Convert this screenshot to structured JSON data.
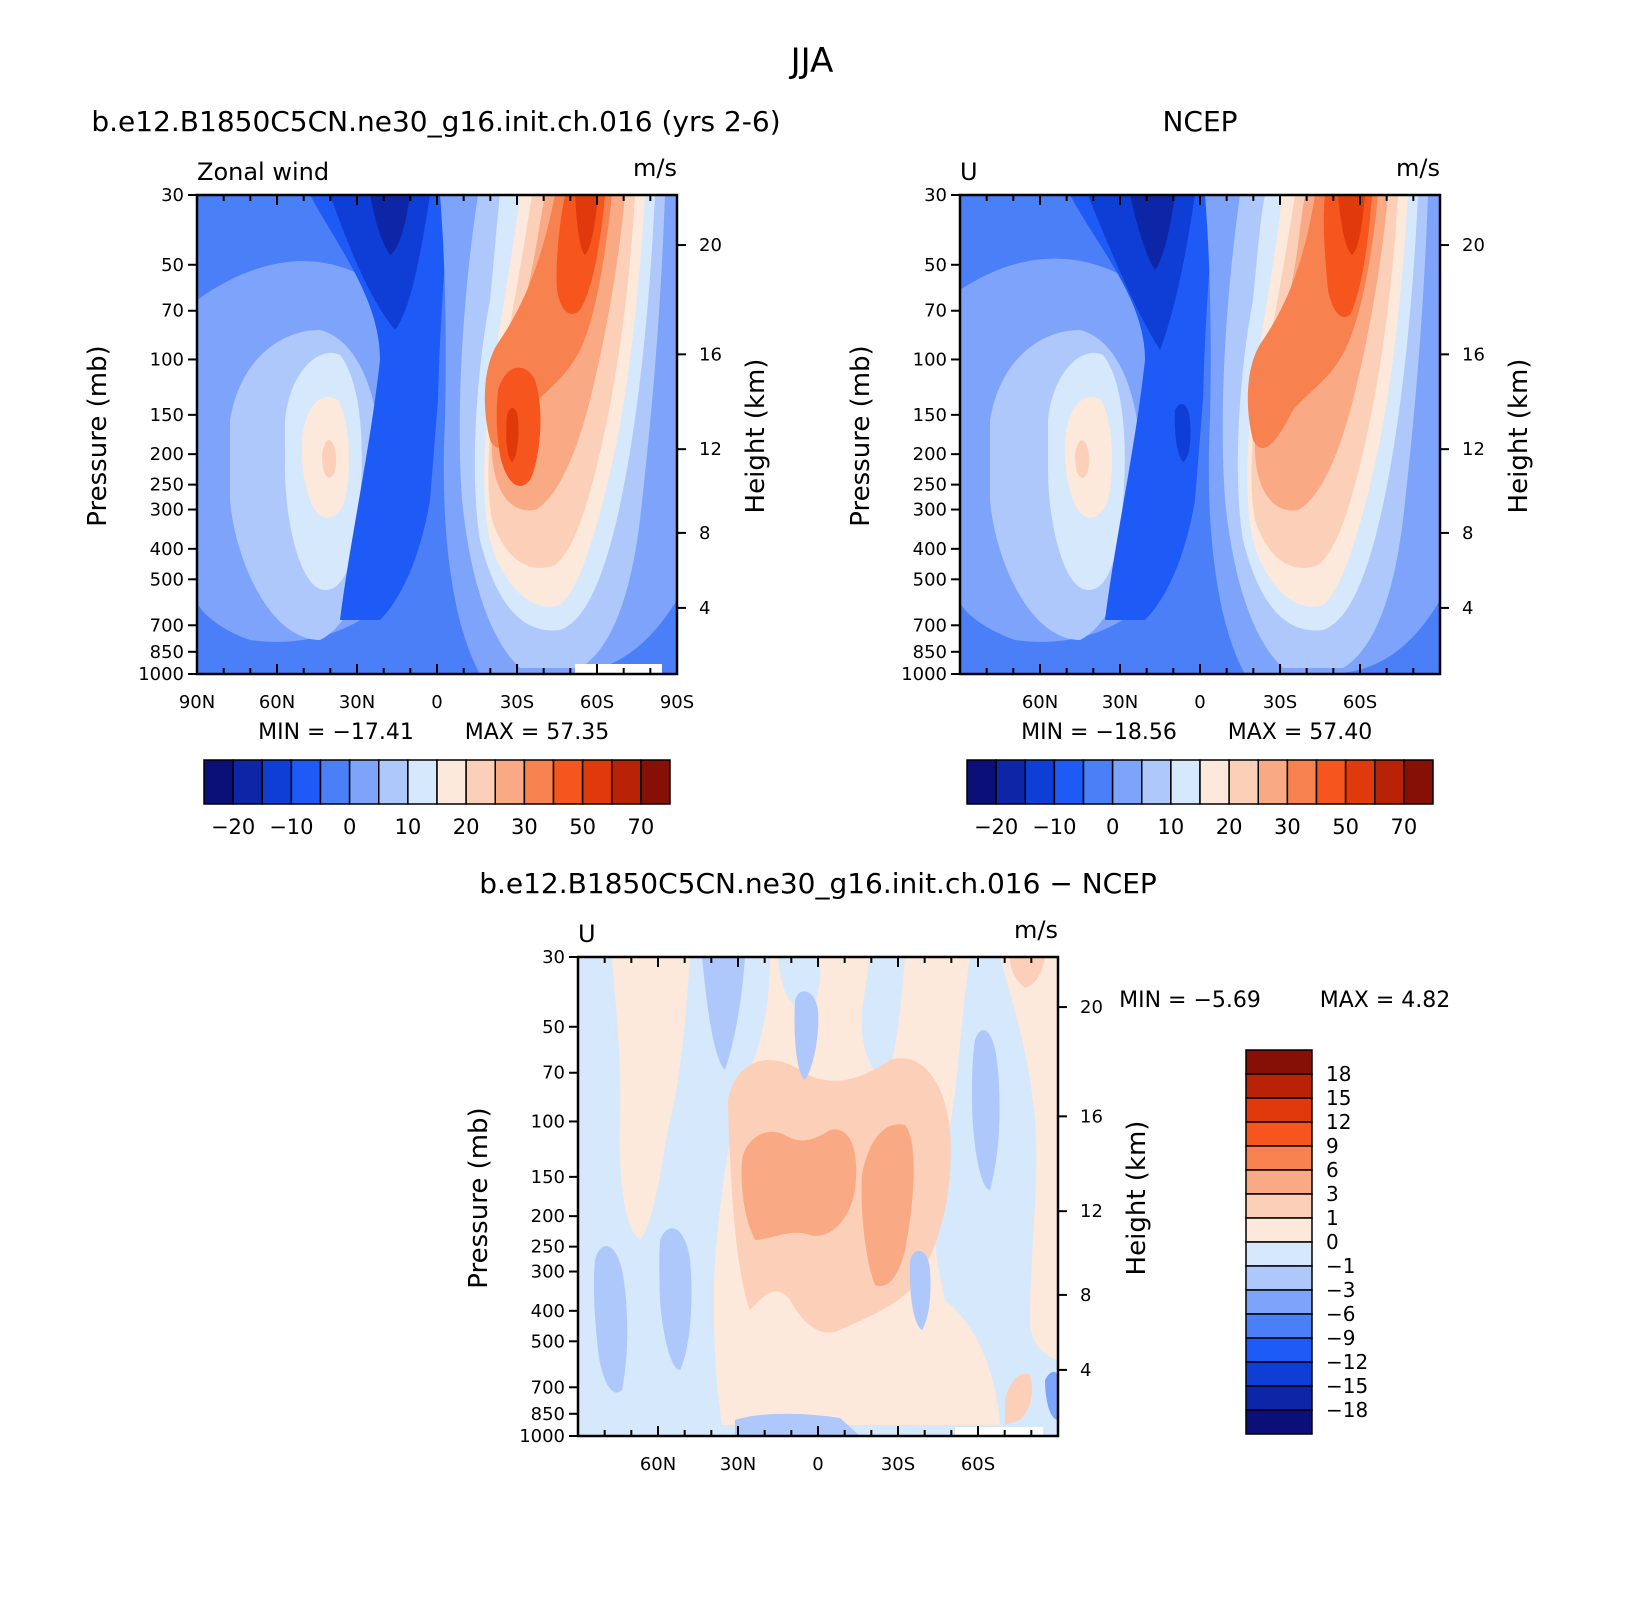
{
  "figure": {
    "title": "JJA"
  },
  "palette": {
    "full": [
      "#0a1078",
      "#0d26a8",
      "#0f3ed6",
      "#1e5af5",
      "#4a7ff7",
      "#7da4fa",
      "#aec8fb",
      "#d6e8fc",
      "#fde9dc",
      "#fcd0b8",
      "#f9aa85",
      "#f7824f",
      "#f6561e",
      "#e03a0c",
      "#b82308",
      "#861006"
    ],
    "model_panel_levels": [
      "#4a7ff7",
      "#7da4fa",
      "#aec8fb",
      "#d6e8fc",
      "#fde9dc",
      "#fcd0b8",
      "#f9aa85",
      "#f7824f",
      "#f6561e",
      "#e03a0c",
      "#1e5af5",
      "#0f3ed6",
      "#0d26a8"
    ],
    "diff_panel_levels": [
      "#d6e8fc",
      "#aec8fb",
      "#7da4fa",
      "#fde9dc",
      "#fcd0b8",
      "#f9aa85"
    ]
  },
  "chart_data": [
    {
      "type": "contour",
      "panel_title": "b.e12.B1850C5CN.ne30_g16.init.ch.016 (yrs 2-6)",
      "left_label": "Zonal wind",
      "right_label": "m/s",
      "ylabel": "Pressure (mb)",
      "ylabel_right": "Height (km)",
      "x_ticks": [
        "90N",
        "60N",
        "30N",
        "0",
        "30S",
        "60S",
        "90S"
      ],
      "x_range": [
        90,
        -90
      ],
      "y_ticks": [
        "30",
        "50",
        "70",
        "100",
        "150",
        "200",
        "250",
        "300",
        "400",
        "500",
        "700",
        "850",
        "1000"
      ],
      "y_range": [
        30,
        1000
      ],
      "y_scale": "log",
      "height_ticks": [
        "20",
        "16",
        "12",
        "8",
        "4"
      ],
      "min_label": "MIN = −17.41",
      "max_label": "MAX = 57.35",
      "min": -17.41,
      "max": 57.35,
      "colorbar_labels": [
        "−20",
        "−10",
        "0",
        "10",
        "20",
        "30",
        "50",
        "70"
      ],
      "colorbar_orientation": "horizontal"
    },
    {
      "type": "contour",
      "panel_title": "NCEP",
      "left_label": "U",
      "right_label": "m/s",
      "ylabel": "Pressure (mb)",
      "ylabel_right": "Height (km)",
      "x_ticks": [
        "60N",
        "30N",
        "0",
        "30S",
        "60S"
      ],
      "x_range": [
        90,
        -90
      ],
      "y_ticks": [
        "30",
        "50",
        "70",
        "100",
        "150",
        "200",
        "250",
        "300",
        "400",
        "500",
        "700",
        "850",
        "1000"
      ],
      "y_range": [
        30,
        1000
      ],
      "y_scale": "log",
      "height_ticks": [
        "20",
        "16",
        "12",
        "8",
        "4"
      ],
      "min_label": "MIN = −18.56",
      "max_label": "MAX = 57.40",
      "min": -18.56,
      "max": 57.4,
      "colorbar_labels": [
        "−20",
        "−10",
        "0",
        "10",
        "20",
        "30",
        "50",
        "70"
      ],
      "colorbar_orientation": "horizontal"
    },
    {
      "type": "contour",
      "panel_title": "b.e12.B1850C5CN.ne30_g16.init.ch.016 − NCEP",
      "left_label": "U",
      "right_label": "m/s",
      "ylabel": "Pressure (mb)",
      "ylabel_right": "Height (km)",
      "x_ticks": [
        "60N",
        "30N",
        "0",
        "30S",
        "60S"
      ],
      "x_range": [
        90,
        -90
      ],
      "y_ticks": [
        "30",
        "50",
        "70",
        "100",
        "150",
        "200",
        "250",
        "300",
        "400",
        "500",
        "700",
        "850",
        "1000"
      ],
      "y_range": [
        30,
        1000
      ],
      "y_scale": "log",
      "height_ticks": [
        "20",
        "16",
        "12",
        "8",
        "4"
      ],
      "min_label": "MIN = −5.69",
      "max_label": "MAX = 4.82",
      "min": -5.69,
      "max": 4.82,
      "colorbar_labels": [
        "18",
        "15",
        "12",
        "9",
        "6",
        "3",
        "1",
        "0",
        "−1",
        "−3",
        "−6",
        "−9",
        "−12",
        "−15",
        "−18"
      ],
      "colorbar_orientation": "vertical"
    }
  ]
}
